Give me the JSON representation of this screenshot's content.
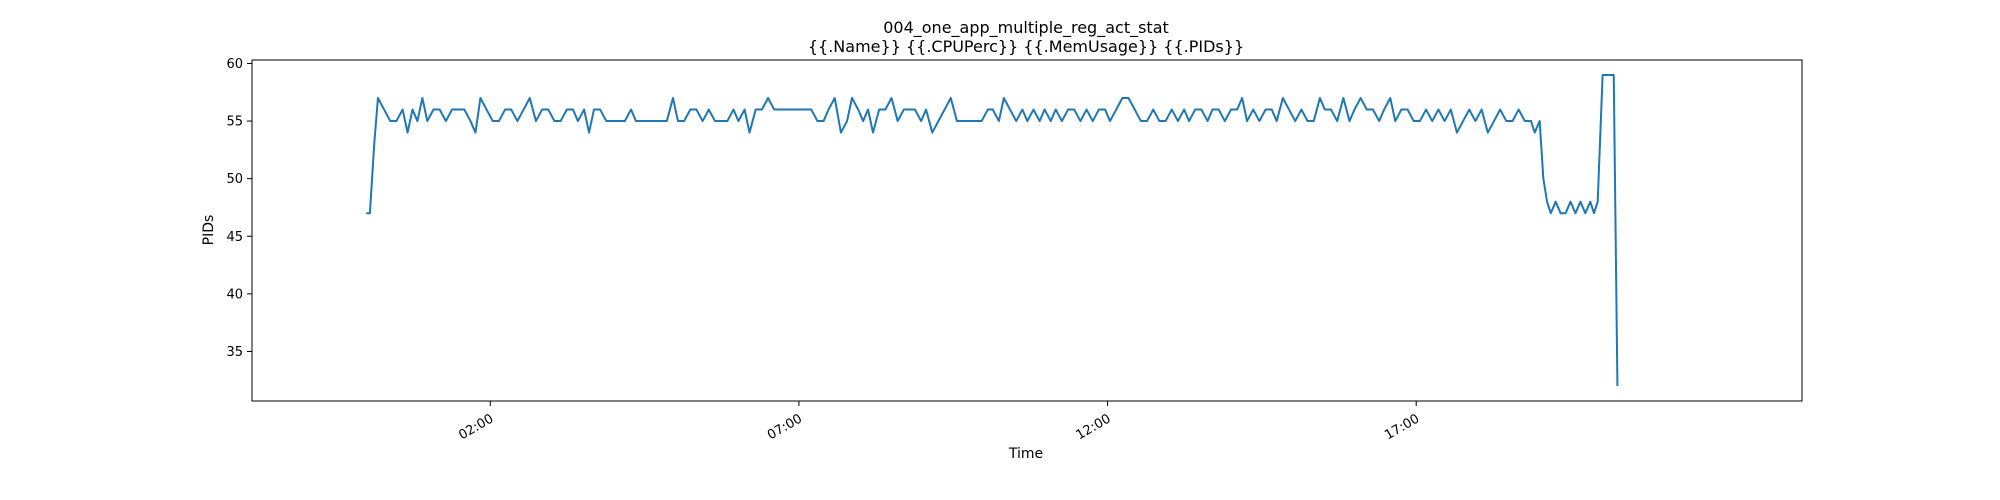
{
  "chart_data": {
    "type": "line",
    "title": "004_one_app_multiple_reg_act_stat",
    "subtitle": "{{.Name}} {{.CPUPerc}} {{.MemUsage}}  {{.PIDs}}",
    "xlabel": "Time",
    "ylabel": "PIDs",
    "xlim": [
      -1.86,
      23.25
    ],
    "ylim": [
      30.7,
      60.3
    ],
    "x_ticks": [
      {
        "value": 2,
        "label": "02:00"
      },
      {
        "value": 7,
        "label": "07:00"
      },
      {
        "value": 12,
        "label": "12:00"
      },
      {
        "value": 17,
        "label": "17:00"
      }
    ],
    "y_ticks": [
      35,
      40,
      45,
      50,
      55,
      60
    ],
    "grid": false,
    "series": [
      {
        "color": "#1f77b4",
        "points": [
          [
            -0.01,
            47
          ],
          [
            0.05,
            47
          ],
          [
            0.12,
            53
          ],
          [
            0.18,
            57
          ],
          [
            0.28,
            56
          ],
          [
            0.38,
            55
          ],
          [
            0.48,
            55
          ],
          [
            0.58,
            56
          ],
          [
            0.66,
            54
          ],
          [
            0.74,
            56
          ],
          [
            0.82,
            55
          ],
          [
            0.9,
            57
          ],
          [
            0.98,
            55
          ],
          [
            1.08,
            56
          ],
          [
            1.18,
            56
          ],
          [
            1.28,
            55
          ],
          [
            1.38,
            56
          ],
          [
            1.48,
            56
          ],
          [
            1.58,
            56
          ],
          [
            1.68,
            55
          ],
          [
            1.76,
            54
          ],
          [
            1.84,
            57
          ],
          [
            1.94,
            56
          ],
          [
            2.04,
            55
          ],
          [
            2.14,
            55
          ],
          [
            2.24,
            56
          ],
          [
            2.34,
            56
          ],
          [
            2.44,
            55
          ],
          [
            2.54,
            56
          ],
          [
            2.64,
            57
          ],
          [
            2.74,
            55
          ],
          [
            2.84,
            56
          ],
          [
            2.94,
            56
          ],
          [
            3.04,
            55
          ],
          [
            3.14,
            55
          ],
          [
            3.24,
            56
          ],
          [
            3.34,
            56
          ],
          [
            3.42,
            55
          ],
          [
            3.52,
            56
          ],
          [
            3.6,
            54
          ],
          [
            3.68,
            56
          ],
          [
            3.78,
            56
          ],
          [
            3.88,
            55
          ],
          [
            3.98,
            55
          ],
          [
            4.08,
            55
          ],
          [
            4.18,
            55
          ],
          [
            4.28,
            56
          ],
          [
            4.36,
            55
          ],
          [
            4.46,
            55
          ],
          [
            4.56,
            55
          ],
          [
            4.66,
            55
          ],
          [
            4.76,
            55
          ],
          [
            4.86,
            55
          ],
          [
            4.96,
            57
          ],
          [
            5.04,
            55
          ],
          [
            5.14,
            55
          ],
          [
            5.24,
            56
          ],
          [
            5.34,
            56
          ],
          [
            5.44,
            55
          ],
          [
            5.54,
            56
          ],
          [
            5.64,
            55
          ],
          [
            5.74,
            55
          ],
          [
            5.84,
            55
          ],
          [
            5.94,
            56
          ],
          [
            6.02,
            55
          ],
          [
            6.12,
            56
          ],
          [
            6.2,
            54
          ],
          [
            6.3,
            56
          ],
          [
            6.4,
            56
          ],
          [
            6.5,
            57
          ],
          [
            6.6,
            56
          ],
          [
            6.7,
            56
          ],
          [
            6.8,
            56
          ],
          [
            6.9,
            56
          ],
          [
            7.0,
            56
          ],
          [
            7.1,
            56
          ],
          [
            7.2,
            56
          ],
          [
            7.3,
            55
          ],
          [
            7.4,
            55
          ],
          [
            7.48,
            56
          ],
          [
            7.58,
            57
          ],
          [
            7.68,
            54
          ],
          [
            7.78,
            55
          ],
          [
            7.86,
            57
          ],
          [
            7.96,
            56
          ],
          [
            8.04,
            55
          ],
          [
            8.12,
            56
          ],
          [
            8.2,
            54
          ],
          [
            8.3,
            56
          ],
          [
            8.4,
            56
          ],
          [
            8.5,
            57
          ],
          [
            8.6,
            55
          ],
          [
            8.7,
            56
          ],
          [
            8.78,
            56
          ],
          [
            8.88,
            56
          ],
          [
            8.98,
            55
          ],
          [
            9.06,
            56
          ],
          [
            9.16,
            54
          ],
          [
            9.26,
            55
          ],
          [
            9.36,
            56
          ],
          [
            9.46,
            57
          ],
          [
            9.56,
            55
          ],
          [
            9.66,
            55
          ],
          [
            9.76,
            55
          ],
          [
            9.86,
            55
          ],
          [
            9.96,
            55
          ],
          [
            10.06,
            56
          ],
          [
            10.14,
            56
          ],
          [
            10.24,
            55
          ],
          [
            10.32,
            57
          ],
          [
            10.42,
            56
          ],
          [
            10.52,
            55
          ],
          [
            10.62,
            56
          ],
          [
            10.7,
            55
          ],
          [
            10.8,
            56
          ],
          [
            10.9,
            55
          ],
          [
            10.98,
            56
          ],
          [
            11.08,
            55
          ],
          [
            11.16,
            56
          ],
          [
            11.26,
            55
          ],
          [
            11.36,
            56
          ],
          [
            11.46,
            56
          ],
          [
            11.56,
            55
          ],
          [
            11.66,
            56
          ],
          [
            11.76,
            55
          ],
          [
            11.86,
            56
          ],
          [
            11.96,
            56
          ],
          [
            12.04,
            55
          ],
          [
            12.14,
            56
          ],
          [
            12.24,
            57
          ],
          [
            12.34,
            57
          ],
          [
            12.44,
            56
          ],
          [
            12.54,
            55
          ],
          [
            12.64,
            55
          ],
          [
            12.74,
            56
          ],
          [
            12.84,
            55
          ],
          [
            12.94,
            55
          ],
          [
            13.04,
            56
          ],
          [
            13.14,
            55
          ],
          [
            13.24,
            56
          ],
          [
            13.32,
            55
          ],
          [
            13.42,
            56
          ],
          [
            13.52,
            56
          ],
          [
            13.62,
            55
          ],
          [
            13.7,
            56
          ],
          [
            13.8,
            56
          ],
          [
            13.9,
            55
          ],
          [
            14.0,
            56
          ],
          [
            14.1,
            56
          ],
          [
            14.18,
            57
          ],
          [
            14.26,
            55
          ],
          [
            14.36,
            56
          ],
          [
            14.46,
            55
          ],
          [
            14.56,
            56
          ],
          [
            14.66,
            56
          ],
          [
            14.74,
            55
          ],
          [
            14.84,
            57
          ],
          [
            14.94,
            56
          ],
          [
            15.04,
            55
          ],
          [
            15.14,
            56
          ],
          [
            15.24,
            55
          ],
          [
            15.34,
            55
          ],
          [
            15.44,
            57
          ],
          [
            15.52,
            56
          ],
          [
            15.62,
            56
          ],
          [
            15.72,
            55
          ],
          [
            15.82,
            57
          ],
          [
            15.92,
            55
          ],
          [
            16.0,
            56
          ],
          [
            16.1,
            57
          ],
          [
            16.2,
            56
          ],
          [
            16.3,
            56
          ],
          [
            16.4,
            55
          ],
          [
            16.48,
            56
          ],
          [
            16.58,
            57
          ],
          [
            16.66,
            55
          ],
          [
            16.76,
            56
          ],
          [
            16.86,
            56
          ],
          [
            16.96,
            55
          ],
          [
            17.06,
            55
          ],
          [
            17.16,
            56
          ],
          [
            17.26,
            55
          ],
          [
            17.36,
            56
          ],
          [
            17.46,
            55
          ],
          [
            17.56,
            56
          ],
          [
            17.66,
            54
          ],
          [
            17.76,
            55
          ],
          [
            17.86,
            56
          ],
          [
            17.96,
            55
          ],
          [
            18.06,
            56
          ],
          [
            18.16,
            54
          ],
          [
            18.26,
            55
          ],
          [
            18.36,
            56
          ],
          [
            18.46,
            55
          ],
          [
            18.56,
            55
          ],
          [
            18.66,
            56
          ],
          [
            18.76,
            55
          ],
          [
            18.86,
            55
          ],
          [
            18.92,
            54
          ],
          [
            19.0,
            55
          ],
          [
            19.06,
            50
          ],
          [
            19.12,
            48
          ],
          [
            19.18,
            47
          ],
          [
            19.26,
            48
          ],
          [
            19.34,
            47
          ],
          [
            19.42,
            47
          ],
          [
            19.5,
            48
          ],
          [
            19.58,
            47
          ],
          [
            19.66,
            48
          ],
          [
            19.74,
            47
          ],
          [
            19.82,
            48
          ],
          [
            19.88,
            47
          ],
          [
            19.94,
            48
          ],
          [
            20.02,
            59
          ],
          [
            20.12,
            59
          ],
          [
            20.2,
            59
          ],
          [
            20.26,
            32
          ]
        ]
      }
    ]
  }
}
